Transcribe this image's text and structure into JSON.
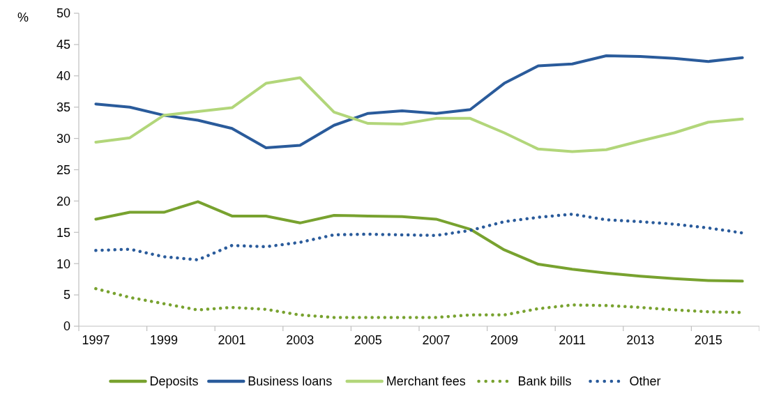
{
  "chart_data": {
    "type": "line",
    "ylabel": "%",
    "categories": [
      "1997",
      null,
      "1999",
      null,
      "2001",
      null,
      "2003",
      null,
      "2005",
      null,
      "2007",
      null,
      "2009",
      null,
      "2011",
      null,
      "2013",
      null,
      "2015",
      null
    ],
    "ylim": [
      0,
      50
    ],
    "yticks": [
      0,
      5,
      10,
      15,
      20,
      25,
      30,
      35,
      40,
      45,
      50
    ],
    "grid": false,
    "legend": "bottom",
    "series": [
      {
        "name": "Deposits",
        "color": "#78a22f",
        "line_style": "solid",
        "values": [
          17.1,
          18.2,
          18.2,
          19.9,
          17.6,
          17.6,
          16.5,
          17.7,
          17.6,
          17.5,
          17.1,
          15.5,
          12.2,
          9.9,
          9.1,
          8.5,
          8.0,
          7.6,
          7.3,
          7.2
        ]
      },
      {
        "name": "Business loans",
        "color": "#2a5b9b",
        "line_style": "solid",
        "values": [
          35.5,
          35.0,
          33.7,
          32.9,
          31.6,
          28.5,
          28.9,
          32.1,
          34.0,
          34.4,
          34.0,
          34.6,
          38.8,
          41.6,
          41.9,
          43.2,
          43.1,
          42.8,
          42.3,
          42.9
        ]
      },
      {
        "name": "Merchant fees",
        "color": "#b2d67a",
        "line_style": "solid",
        "values": [
          29.4,
          30.1,
          33.7,
          34.3,
          34.9,
          38.8,
          39.7,
          34.2,
          32.4,
          32.3,
          33.2,
          33.2,
          30.9,
          28.3,
          27.9,
          28.2,
          29.6,
          30.9,
          32.6,
          33.1
        ]
      },
      {
        "name": "Bank bills",
        "color": "#78a22f",
        "line_style": "dotted",
        "values": [
          6.0,
          4.6,
          3.6,
          2.6,
          3.0,
          2.7,
          1.8,
          1.4,
          1.4,
          1.4,
          1.4,
          1.8,
          1.8,
          2.8,
          3.4,
          3.3,
          3.0,
          2.6,
          2.3,
          2.2
        ]
      },
      {
        "name": "Other",
        "color": "#2a5b9b",
        "line_style": "dotted",
        "values": [
          12.1,
          12.3,
          11.1,
          10.6,
          12.9,
          12.7,
          13.4,
          14.6,
          14.7,
          14.6,
          14.5,
          15.3,
          16.7,
          17.4,
          17.9,
          17.0,
          16.7,
          16.3,
          15.7,
          14.9
        ]
      }
    ]
  }
}
